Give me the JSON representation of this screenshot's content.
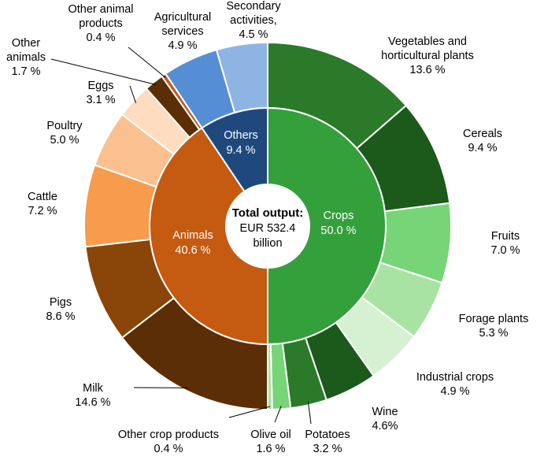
{
  "chart_data": {
    "type": "pie",
    "subtype": "nested-donut",
    "center_label": {
      "title": "Total output:",
      "lines": [
        "EUR 532.4",
        "billion"
      ]
    },
    "inner_ring": [
      {
        "name": "Crops",
        "value_label": "50.0 %",
        "value": 50.0,
        "color": "#34a03b"
      },
      {
        "name": "Animals",
        "value_label": "40.6 %",
        "value": 40.6,
        "color": "#c55a11"
      },
      {
        "name": "Others",
        "value_label": "9.4 %",
        "value": 9.4,
        "color": "#1f497d"
      }
    ],
    "outer_ring": [
      {
        "name": "Vegetables and horticultural  plants",
        "label_lines": [
          "Vegetables and",
          "horticultural  plants"
        ],
        "value_label": "13.6 %",
        "value": 13.6,
        "group": "Crops",
        "color": "#2a7a2a"
      },
      {
        "name": "Cereals",
        "label_lines": [
          "Cereals"
        ],
        "value_label": "9.4 %",
        "value": 9.4,
        "group": "Crops",
        "color": "#1b5a1b"
      },
      {
        "name": "Fruits",
        "label_lines": [
          "Fruits"
        ],
        "value_label": "7.0 %",
        "value": 7.0,
        "group": "Crops",
        "color": "#77d477"
      },
      {
        "name": "Forage plants",
        "label_lines": [
          "Forage plants"
        ],
        "value_label": "5.3 %",
        "value": 5.3,
        "group": "Crops",
        "color": "#a9e3a4"
      },
      {
        "name": "Industrial  crops",
        "label_lines": [
          "Industrial  crops"
        ],
        "value_label": "4.9 %",
        "value": 4.9,
        "group": "Crops",
        "color": "#d6f1d2"
      },
      {
        "name": "Wine",
        "label_lines": [
          "Wine"
        ],
        "value_label": "4.6%",
        "value": 4.6,
        "group": "Crops",
        "color": "#1b5a1b"
      },
      {
        "name": "Potatoes",
        "label_lines": [
          "Potatoes"
        ],
        "value_label": "3.2 %",
        "value": 3.2,
        "group": "Crops",
        "color": "#2a7a2a"
      },
      {
        "name": "Olive oil",
        "label_lines": [
          "Olive oil"
        ],
        "value_label": "1.6 %",
        "value": 1.6,
        "group": "Crops",
        "color": "#77d477"
      },
      {
        "name": "Other crop products",
        "label_lines": [
          "Other crop products"
        ],
        "value_label": "0.4 %",
        "value": 0.4,
        "group": "Crops",
        "color": "#a9e3a4"
      },
      {
        "name": "Milk",
        "label_lines": [
          "Milk"
        ],
        "value_label": "14.6 %",
        "value": 14.6,
        "group": "Animals",
        "color": "#5c2e05"
      },
      {
        "name": "Pigs",
        "label_lines": [
          "Pigs"
        ],
        "value_label": "8.6 %",
        "value": 8.6,
        "group": "Animals",
        "color": "#8a4508"
      },
      {
        "name": "Cattle",
        "label_lines": [
          "Cattle"
        ],
        "value_label": "7.2 %",
        "value": 7.2,
        "group": "Animals",
        "color": "#f79b4c"
      },
      {
        "name": "Poultry",
        "label_lines": [
          "Poultry"
        ],
        "value_label": "5.0 %",
        "value": 5.0,
        "group": "Animals",
        "color": "#fac08f"
      },
      {
        "name": "Eggs",
        "label_lines": [
          "Eggs"
        ],
        "value_label": "3.1 %",
        "value": 3.1,
        "group": "Animals",
        "color": "#fddcc0"
      },
      {
        "name": "Other animals",
        "label_lines": [
          "Other",
          "animals"
        ],
        "value_label": "1.7 %",
        "value": 1.7,
        "group": "Animals",
        "color": "#5c2e05"
      },
      {
        "name": "Other animal products",
        "label_lines": [
          "Other animal",
          "products"
        ],
        "value_label": "0.4 %",
        "value": 0.4,
        "group": "Animals",
        "color": "#c55a11"
      },
      {
        "name": "Agricultural services",
        "label_lines": [
          "Agricultural",
          "services"
        ],
        "value_label": "4.9 %",
        "value": 4.9,
        "group": "Others",
        "color": "#558ed5"
      },
      {
        "name": "Secondary activities,",
        "label_lines": [
          "Secondary",
          "activities,"
        ],
        "value_label": "4.5 %",
        "value": 4.5,
        "group": "Others",
        "color": "#8eb4e3"
      }
    ]
  }
}
